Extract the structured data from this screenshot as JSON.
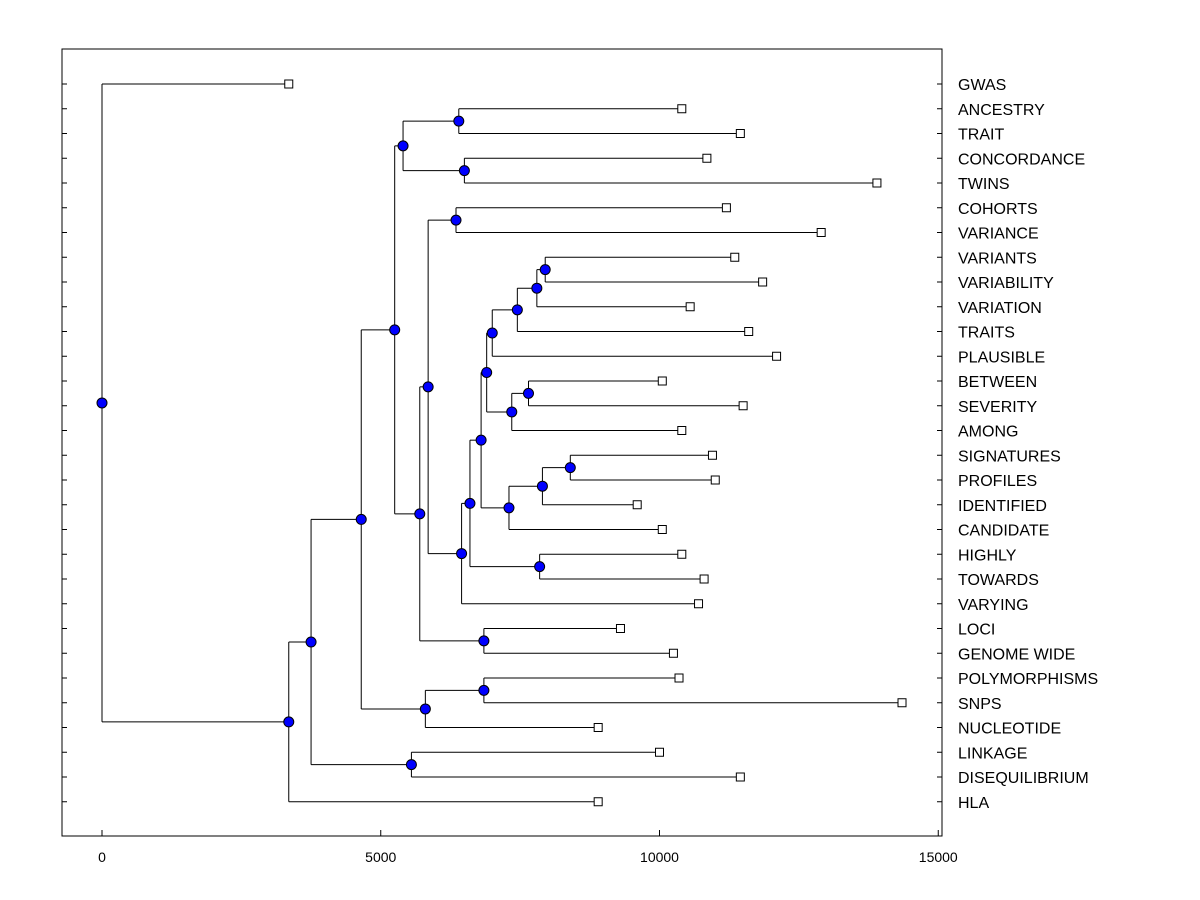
{
  "chart_data": {
    "type": "dendrogram",
    "title": "",
    "xlabel": "",
    "ylabel": "",
    "xlim": [
      -750,
      15000
    ],
    "x_ticks": [
      0,
      5000,
      10000,
      15000
    ],
    "grid": false,
    "colors": {
      "node_fill": "#0000ff",
      "leaf_fill": "#ffffff",
      "line": "#000000"
    },
    "leaves": [
      {
        "name": "GWAS",
        "value": 3350
      },
      {
        "name": "ANCESTRY",
        "value": 10400
      },
      {
        "name": "TRAIT",
        "value": 11450
      },
      {
        "name": "CONCORDANCE",
        "value": 10850
      },
      {
        "name": "TWINS",
        "value": 13900
      },
      {
        "name": "COHORTS",
        "value": 11200
      },
      {
        "name": "VARIANCE",
        "value": 12900
      },
      {
        "name": "VARIANTS",
        "value": 11350
      },
      {
        "name": "VARIABILITY",
        "value": 11850
      },
      {
        "name": "VARIATION",
        "value": 10550
      },
      {
        "name": "TRAITS",
        "value": 11600
      },
      {
        "name": "PLAUSIBLE",
        "value": 12100
      },
      {
        "name": "BETWEEN",
        "value": 10050
      },
      {
        "name": "SEVERITY",
        "value": 11500
      },
      {
        "name": "AMONG",
        "value": 10400
      },
      {
        "name": "SIGNATURES",
        "value": 10950
      },
      {
        "name": "PROFILES",
        "value": 11000
      },
      {
        "name": "IDENTIFIED",
        "value": 9600
      },
      {
        "name": "CANDIDATE",
        "value": 10050
      },
      {
        "name": "HIGHLY",
        "value": 10400
      },
      {
        "name": "TOWARDS",
        "value": 10800
      },
      {
        "name": "VARYING",
        "value": 10700
      },
      {
        "name": "LOCI",
        "value": 9300
      },
      {
        "name": "GENOME WIDE",
        "value": 10250
      },
      {
        "name": "POLYMORPHISMS",
        "value": 10350
      },
      {
        "name": "SNPS",
        "value": 14350
      },
      {
        "name": "NUCLEOTIDE",
        "value": 8900
      },
      {
        "name": "LINKAGE",
        "value": 10000
      },
      {
        "name": "DISEQUILIBRIUM",
        "value": 11450
      },
      {
        "name": "HLA",
        "value": 8900
      }
    ],
    "nodes": [
      {
        "id": "n1",
        "value": 6400,
        "children": [
          "ANCESTRY",
          "TRAIT"
        ]
      },
      {
        "id": "n2",
        "value": 6500,
        "children": [
          "CONCORDANCE",
          "TWINS"
        ]
      },
      {
        "id": "n3",
        "value": 5400,
        "children": [
          "n1",
          "n2"
        ]
      },
      {
        "id": "n4",
        "value": 6350,
        "children": [
          "COHORTS",
          "VARIANCE"
        ]
      },
      {
        "id": "n5",
        "value": 7950,
        "children": [
          "VARIANTS",
          "VARIABILITY"
        ]
      },
      {
        "id": "n6",
        "value": 7800,
        "children": [
          "n5",
          "VARIATION"
        ]
      },
      {
        "id": "n7",
        "value": 7450,
        "children": [
          "n6",
          "TRAITS"
        ]
      },
      {
        "id": "n8",
        "value": 7000,
        "children": [
          "n7",
          "PLAUSIBLE"
        ]
      },
      {
        "id": "n9",
        "value": 7650,
        "children": [
          "BETWEEN",
          "SEVERITY"
        ]
      },
      {
        "id": "n10",
        "value": 7350,
        "children": [
          "n9",
          "AMONG"
        ]
      },
      {
        "id": "n11",
        "value": 6900,
        "children": [
          "n8",
          "n10"
        ]
      },
      {
        "id": "n12",
        "value": 8400,
        "children": [
          "SIGNATURES",
          "PROFILES"
        ]
      },
      {
        "id": "n13",
        "value": 7900,
        "children": [
          "n12",
          "IDENTIFIED"
        ]
      },
      {
        "id": "n14",
        "value": 7300,
        "children": [
          "n13",
          "CANDIDATE"
        ]
      },
      {
        "id": "n15",
        "value": 6800,
        "children": [
          "n11",
          "n14"
        ]
      },
      {
        "id": "n16",
        "value": 7850,
        "children": [
          "HIGHLY",
          "TOWARDS"
        ]
      },
      {
        "id": "n17",
        "value": 6600,
        "children": [
          "n15",
          "n16"
        ]
      },
      {
        "id": "n18",
        "value": 6450,
        "children": [
          "n17",
          "VARYING"
        ]
      },
      {
        "id": "n19",
        "value": 5850,
        "children": [
          "n4",
          "n18"
        ]
      },
      {
        "id": "n20",
        "value": 6850,
        "children": [
          "LOCI",
          "GENOME WIDE"
        ]
      },
      {
        "id": "n21",
        "value": 5700,
        "children": [
          "n19",
          "n20"
        ]
      },
      {
        "id": "n22",
        "value": 5250,
        "children": [
          "n3",
          "n21"
        ]
      },
      {
        "id": "n23",
        "value": 6850,
        "children": [
          "POLYMORPHISMS",
          "SNPS"
        ]
      },
      {
        "id": "n24",
        "value": 5800,
        "children": [
          "n23",
          "NUCLEOTIDE"
        ]
      },
      {
        "id": "n25",
        "value": 4650,
        "children": [
          "n22",
          "n24"
        ]
      },
      {
        "id": "n26",
        "value": 5550,
        "children": [
          "LINKAGE",
          "DISEQUILIBRIUM"
        ]
      },
      {
        "id": "n27",
        "value": 3750,
        "children": [
          "n25",
          "n26"
        ]
      },
      {
        "id": "n28",
        "value": 3350,
        "children": [
          "n27",
          "HLA"
        ]
      },
      {
        "id": "root",
        "value": 0,
        "children": [
          "GWAS",
          "n28"
        ]
      }
    ]
  }
}
